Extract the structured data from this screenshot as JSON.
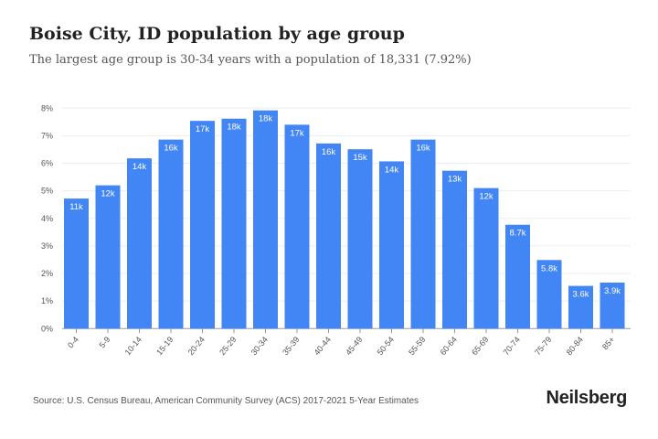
{
  "title": "Boise City, ID population by age group",
  "subtitle": "The largest age group is 30-34 years with a population of 18,331 (7.92%)",
  "source": "Source: U.S. Census Bureau, American Community Survey (ACS) 2017-2021 5-Year Estimates",
  "logo": "Neilsberg",
  "colors": {
    "bar": "#4285f4",
    "grid": "#eeeeee"
  },
  "chart_data": {
    "type": "bar",
    "title": "Boise City, ID population by age group",
    "xlabel": "",
    "ylabel": "",
    "ylim": [
      0,
      8
    ],
    "yticks": [
      "0%",
      "1%",
      "2%",
      "3%",
      "4%",
      "5%",
      "6%",
      "7%",
      "8%"
    ],
    "grid": true,
    "categories": [
      "0-4",
      "5-9",
      "10-14",
      "15-19",
      "20-24",
      "25-29",
      "30-34",
      "35-39",
      "40-44",
      "45-49",
      "50-54",
      "55-59",
      "60-64",
      "65-69",
      "70-74",
      "75-79",
      "80-84",
      "85+"
    ],
    "values": [
      4.72,
      5.2,
      6.18,
      6.86,
      7.54,
      7.62,
      7.92,
      7.4,
      6.72,
      6.51,
      6.07,
      6.86,
      5.73,
      5.1,
      3.77,
      2.49,
      1.55,
      1.67
    ],
    "data_labels": [
      "11k",
      "12k",
      "14k",
      "16k",
      "17k",
      "18k",
      "18k",
      "17k",
      "16k",
      "15k",
      "14k",
      "16k",
      "13k",
      "12k",
      "8.7k",
      "5.8k",
      "3.6k",
      "3.9k"
    ]
  }
}
